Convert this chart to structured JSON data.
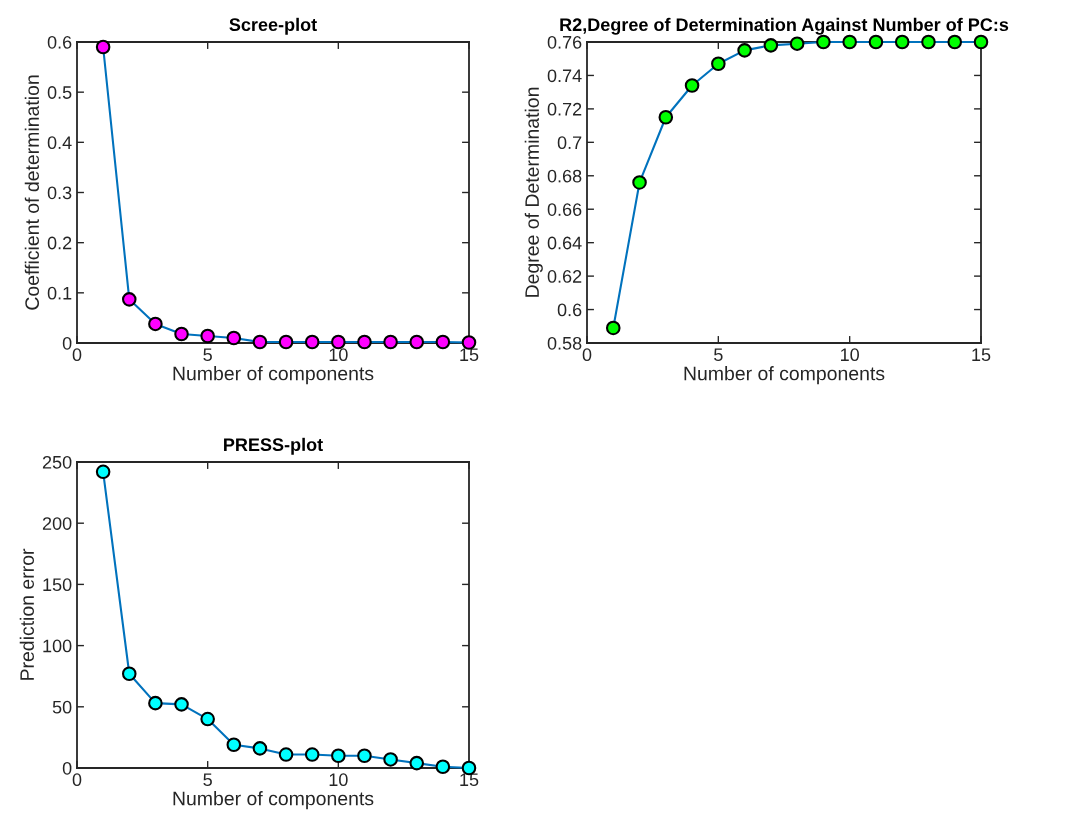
{
  "chart_data": [
    {
      "type": "line",
      "title": "Scree-plot",
      "xlabel": "Number of components",
      "ylabel": "Coefficient of determination",
      "x": [
        1,
        2,
        3,
        4,
        5,
        6,
        7,
        8,
        9,
        10,
        11,
        12,
        13,
        14,
        15
      ],
      "xlim": [
        0,
        15
      ],
      "xticks": [
        0,
        5,
        10,
        15
      ],
      "ylim": [
        0,
        0.6
      ],
      "yticks": [
        0,
        0.1,
        0.2,
        0.3,
        0.4,
        0.5,
        0.6
      ],
      "marker": "circle",
      "line_style": "solid",
      "series": [
        {
          "color": "#0072bd",
          "colors": [
            "#ff00ff",
            "#ff00ff",
            "#ff00ff",
            "#ff00ff",
            "#ff00ff",
            "#ff00ff",
            "#ff00ff",
            "#ff00ff",
            "#ff00ff",
            "#ff00ff",
            "#ff00ff",
            "#ff00ff",
            "#ff00ff",
            "#ff00ff",
            "#ff00ff"
          ],
          "values": [
            0.59,
            0.087,
            0.038,
            0.018,
            0.014,
            0.01,
            0.002,
            0.002,
            0.002,
            0.002,
            0.002,
            0.002,
            0.002,
            0.002,
            0.001
          ]
        }
      ]
    },
    {
      "type": "line",
      "title": "R2,Degree of Determination Against Number of PC:s",
      "ylabel": "Degree of Determination",
      "xlabel": "Number of components",
      "x": [
        1,
        2,
        3,
        4,
        5,
        6,
        7,
        8,
        9,
        10,
        11,
        12,
        13,
        14,
        15
      ],
      "xlim": [
        0,
        15
      ],
      "xticks": [
        0,
        5,
        10,
        15
      ],
      "ylim": [
        0.58,
        0.76
      ],
      "yticks": [
        0.58,
        0.6,
        0.62,
        0.64,
        0.66,
        0.68,
        0.7,
        0.72,
        0.74,
        0.76
      ],
      "marker": "circle",
      "line_style": "solid",
      "series": [
        {
          "color": "#0072bd",
          "colors": [
            "#00ff00",
            "#00ff00",
            "#00ff00",
            "#00ff00",
            "#00ff00",
            "#00ff00",
            "#00ff00",
            "#00ff00",
            "#00ff00",
            "#00ff00",
            "#00ff00",
            "#00ff00",
            "#00ff00",
            "#00ff00",
            "#00ff00"
          ],
          "values": [
            0.589,
            0.676,
            0.715,
            0.734,
            0.747,
            0.755,
            0.758,
            0.759,
            0.76,
            0.76,
            0.76,
            0.76,
            0.76,
            0.76,
            0.76
          ]
        }
      ]
    },
    {
      "type": "line",
      "title": "PRESS-plot",
      "xlabel": "Number of components",
      "ylabel": "Prediction error",
      "x": [
        1,
        2,
        3,
        4,
        5,
        6,
        7,
        8,
        9,
        10,
        11,
        12,
        13,
        14,
        15
      ],
      "xlim": [
        0,
        15
      ],
      "xticks": [
        0,
        5,
        10,
        15
      ],
      "ylim": [
        0,
        250
      ],
      "yticks": [
        0,
        50,
        100,
        150,
        200,
        250
      ],
      "marker": "circle",
      "line_style": "solid",
      "series": [
        {
          "color": "#0072bd",
          "colors": [
            "#00ffff",
            "#00ffff",
            "#00ffff",
            "#00ffff",
            "#00ffff",
            "#00ffff",
            "#00ffff",
            "#00ffff",
            "#00ffff",
            "#00ffff",
            "#00ffff",
            "#00ffff",
            "#00ffff",
            "#00ffff",
            "#00ffff"
          ],
          "values": [
            242,
            77,
            53,
            52,
            40,
            19,
            16,
            11,
            11,
            10,
            10,
            7,
            4,
            1,
            0
          ]
        }
      ]
    }
  ]
}
